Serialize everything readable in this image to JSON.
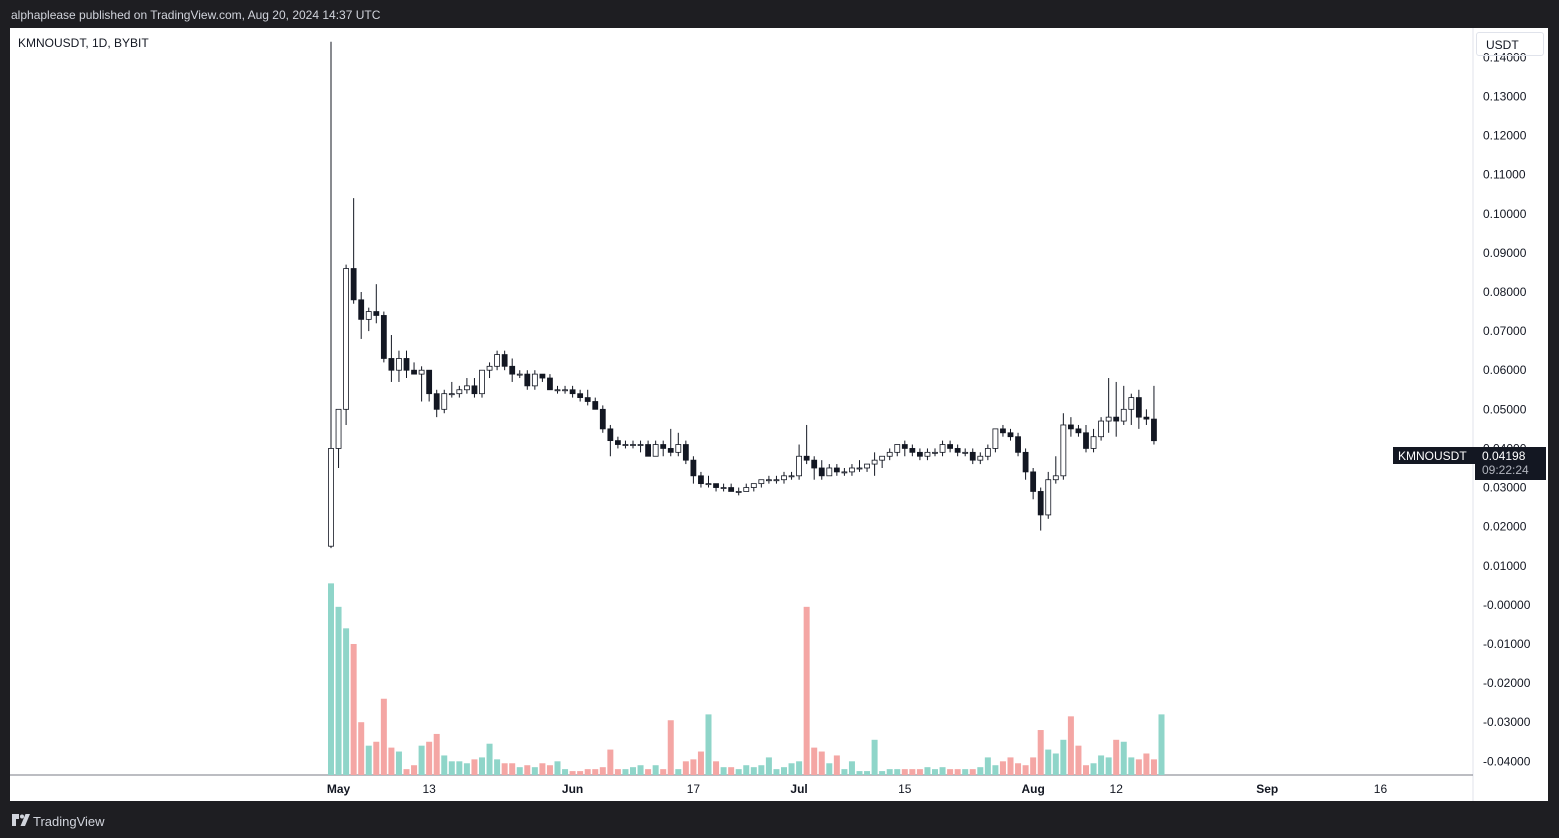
{
  "header": {
    "published_text": "alphaplease published on TradingView.com, Aug 20, 2024 14:37 UTC"
  },
  "chart_header": {
    "symbol_text": "KMNOUSDT, 1D, BYBIT",
    "currency": "USDT"
  },
  "price_badge": {
    "symbol": "KMNOUSDT",
    "price": "0.04198",
    "countdown": "09:22:24"
  },
  "footer": {
    "brand": "TradingView"
  },
  "colors": {
    "up_volume": "#8fd5c9",
    "down_volume": "#f4a6a4",
    "candle_down": "#131722",
    "candle_up_fill": "#ffffff",
    "axis_text": "#131722"
  },
  "chart_data": {
    "type": "candlestick",
    "symbol": "KMNOUSDT",
    "interval": "1D",
    "exchange": "BYBIT",
    "y_axis": {
      "ticks": [
        "0.14000",
        "0.13000",
        "0.12000",
        "0.11000",
        "0.10000",
        "0.09000",
        "0.08000",
        "0.07000",
        "0.06000",
        "0.05000",
        "0.04000",
        "0.03000",
        "0.02000",
        "0.01000",
        "-0.00000",
        "-0.01000",
        "-0.02000",
        "-0.03000",
        "-0.04000"
      ],
      "min": -0.0435,
      "max": 0.1475
    },
    "x_axis": {
      "ticks": [
        {
          "label": "May",
          "date": "2024-05-01",
          "bold": true
        },
        {
          "label": "13",
          "date": "2024-05-13",
          "bold": false
        },
        {
          "label": "Jun",
          "date": "2024-06-01",
          "bold": true
        },
        {
          "label": "17",
          "date": "2024-06-17",
          "bold": false
        },
        {
          "label": "Jul",
          "date": "2024-07-01",
          "bold": true
        },
        {
          "label": "15",
          "date": "2024-07-15",
          "bold": false
        },
        {
          "label": "Aug",
          "date": "2024-08-01",
          "bold": true
        },
        {
          "label": "12",
          "date": "2024-08-12",
          "bold": false
        },
        {
          "label": "Sep",
          "date": "2024-09-01",
          "bold": true
        },
        {
          "label": "16",
          "date": "2024-09-16",
          "bold": false
        }
      ]
    },
    "first_date": "2024-04-30",
    "last_price": 0.04198,
    "candles": [
      [
        0.015,
        0.144,
        0.0145,
        0.04
      ],
      [
        0.04,
        0.05,
        0.035,
        0.05
      ],
      [
        0.05,
        0.087,
        0.046,
        0.086
      ],
      [
        0.086,
        0.104,
        0.077,
        0.078
      ],
      [
        0.078,
        0.08,
        0.068,
        0.073
      ],
      [
        0.073,
        0.076,
        0.07,
        0.075
      ],
      [
        0.075,
        0.082,
        0.072,
        0.074
      ],
      [
        0.074,
        0.075,
        0.062,
        0.063
      ],
      [
        0.063,
        0.069,
        0.057,
        0.06
      ],
      [
        0.06,
        0.065,
        0.057,
        0.063
      ],
      [
        0.063,
        0.065,
        0.058,
        0.06
      ],
      [
        0.06,
        0.062,
        0.059,
        0.059
      ],
      [
        0.059,
        0.061,
        0.052,
        0.06
      ],
      [
        0.06,
        0.06,
        0.052,
        0.054
      ],
      [
        0.054,
        0.055,
        0.048,
        0.05
      ],
      [
        0.05,
        0.055,
        0.049,
        0.054
      ],
      [
        0.054,
        0.057,
        0.053,
        0.054
      ],
      [
        0.054,
        0.056,
        0.053,
        0.055
      ],
      [
        0.055,
        0.058,
        0.054,
        0.056
      ],
      [
        0.056,
        0.058,
        0.053,
        0.054
      ],
      [
        0.054,
        0.06,
        0.053,
        0.06
      ],
      [
        0.06,
        0.062,
        0.058,
        0.061
      ],
      [
        0.061,
        0.065,
        0.06,
        0.064
      ],
      [
        0.064,
        0.065,
        0.06,
        0.061
      ],
      [
        0.061,
        0.063,
        0.057,
        0.059
      ],
      [
        0.059,
        0.06,
        0.058,
        0.059
      ],
      [
        0.059,
        0.06,
        0.055,
        0.056
      ],
      [
        0.056,
        0.06,
        0.055,
        0.059
      ],
      [
        0.059,
        0.059,
        0.057,
        0.058
      ],
      [
        0.058,
        0.059,
        0.055,
        0.055
      ],
      [
        0.055,
        0.056,
        0.054,
        0.055
      ],
      [
        0.055,
        0.056,
        0.054,
        0.055
      ],
      [
        0.055,
        0.056,
        0.053,
        0.054
      ],
      [
        0.054,
        0.055,
        0.052,
        0.053
      ],
      [
        0.053,
        0.055,
        0.051,
        0.052
      ],
      [
        0.052,
        0.053,
        0.05,
        0.05
      ],
      [
        0.05,
        0.051,
        0.044,
        0.045
      ],
      [
        0.045,
        0.046,
        0.038,
        0.042
      ],
      [
        0.042,
        0.043,
        0.04,
        0.041
      ],
      [
        0.041,
        0.042,
        0.04,
        0.041
      ],
      [
        0.041,
        0.042,
        0.04,
        0.041
      ],
      [
        0.041,
        0.042,
        0.039,
        0.041
      ],
      [
        0.041,
        0.042,
        0.038,
        0.038
      ],
      [
        0.038,
        0.042,
        0.038,
        0.041
      ],
      [
        0.041,
        0.042,
        0.038,
        0.04
      ],
      [
        0.04,
        0.045,
        0.038,
        0.039
      ],
      [
        0.039,
        0.044,
        0.038,
        0.041
      ],
      [
        0.041,
        0.042,
        0.036,
        0.037
      ],
      [
        0.037,
        0.038,
        0.031,
        0.033
      ],
      [
        0.033,
        0.034,
        0.03,
        0.031
      ],
      [
        0.031,
        0.033,
        0.03,
        0.031
      ],
      [
        0.031,
        0.031,
        0.029,
        0.03
      ],
      [
        0.03,
        0.031,
        0.029,
        0.03
      ],
      [
        0.03,
        0.031,
        0.029,
        0.029
      ],
      [
        0.029,
        0.03,
        0.028,
        0.029
      ],
      [
        0.029,
        0.031,
        0.029,
        0.03
      ],
      [
        0.03,
        0.031,
        0.029,
        0.031
      ],
      [
        0.031,
        0.032,
        0.03,
        0.032
      ],
      [
        0.032,
        0.033,
        0.031,
        0.032
      ],
      [
        0.032,
        0.033,
        0.031,
        0.032
      ],
      [
        0.032,
        0.034,
        0.031,
        0.033
      ],
      [
        0.033,
        0.034,
        0.032,
        0.033
      ],
      [
        0.033,
        0.041,
        0.032,
        0.038
      ],
      [
        0.038,
        0.046,
        0.036,
        0.037
      ],
      [
        0.037,
        0.038,
        0.032,
        0.035
      ],
      [
        0.035,
        0.037,
        0.032,
        0.033
      ],
      [
        0.033,
        0.036,
        0.033,
        0.035
      ],
      [
        0.035,
        0.036,
        0.033,
        0.034
      ],
      [
        0.034,
        0.035,
        0.033,
        0.034
      ],
      [
        0.034,
        0.036,
        0.033,
        0.035
      ],
      [
        0.035,
        0.037,
        0.034,
        0.035
      ],
      [
        0.035,
        0.036,
        0.034,
        0.036
      ],
      [
        0.036,
        0.039,
        0.033,
        0.037
      ],
      [
        0.037,
        0.038,
        0.035,
        0.038
      ],
      [
        0.038,
        0.04,
        0.037,
        0.039
      ],
      [
        0.039,
        0.041,
        0.038,
        0.041
      ],
      [
        0.041,
        0.042,
        0.038,
        0.04
      ],
      [
        0.04,
        0.041,
        0.038,
        0.039
      ],
      [
        0.039,
        0.04,
        0.037,
        0.038
      ],
      [
        0.038,
        0.04,
        0.037,
        0.039
      ],
      [
        0.039,
        0.04,
        0.038,
        0.039
      ],
      [
        0.039,
        0.042,
        0.038,
        0.041
      ],
      [
        0.041,
        0.042,
        0.039,
        0.04
      ],
      [
        0.04,
        0.041,
        0.038,
        0.039
      ],
      [
        0.039,
        0.04,
        0.038,
        0.039
      ],
      [
        0.039,
        0.04,
        0.036,
        0.037
      ],
      [
        0.037,
        0.039,
        0.036,
        0.038
      ],
      [
        0.038,
        0.041,
        0.037,
        0.04
      ],
      [
        0.04,
        0.045,
        0.039,
        0.045
      ],
      [
        0.045,
        0.046,
        0.043,
        0.044
      ],
      [
        0.044,
        0.045,
        0.042,
        0.043
      ],
      [
        0.043,
        0.044,
        0.038,
        0.039
      ],
      [
        0.039,
        0.04,
        0.032,
        0.034
      ],
      [
        0.034,
        0.035,
        0.027,
        0.029
      ],
      [
        0.029,
        0.03,
        0.019,
        0.023
      ],
      [
        0.023,
        0.034,
        0.022,
        0.032
      ],
      [
        0.032,
        0.038,
        0.031,
        0.033
      ],
      [
        0.033,
        0.049,
        0.032,
        0.046
      ],
      [
        0.046,
        0.048,
        0.043,
        0.045
      ],
      [
        0.045,
        0.046,
        0.043,
        0.044
      ],
      [
        0.044,
        0.046,
        0.039,
        0.04
      ],
      [
        0.04,
        0.045,
        0.039,
        0.043
      ],
      [
        0.043,
        0.048,
        0.042,
        0.047
      ],
      [
        0.047,
        0.058,
        0.044,
        0.048
      ],
      [
        0.048,
        0.057,
        0.043,
        0.047
      ],
      [
        0.047,
        0.056,
        0.046,
        0.05
      ],
      [
        0.05,
        0.054,
        0.046,
        0.053
      ],
      [
        0.053,
        0.055,
        0.045,
        0.048
      ],
      [
        0.048,
        0.05,
        0.046,
        0.0475
      ],
      [
        0.0475,
        0.056,
        0.041,
        0.04198
      ]
    ],
    "volume_scale": {
      "bottom_value": -0.0435,
      "top_value": 0.0055
    },
    "volume": [
      0.0055,
      -0.0005,
      -0.006,
      -0.01,
      -0.03,
      -0.036,
      -0.035,
      -0.024,
      -0.0365,
      -0.0375,
      -0.042,
      -0.041,
      -0.036,
      -0.035,
      -0.033,
      -0.0385,
      -0.04,
      -0.04,
      -0.0405,
      -0.0395,
      -0.039,
      -0.0355,
      -0.0395,
      -0.0405,
      -0.0405,
      -0.0415,
      -0.041,
      -0.0415,
      -0.0405,
      -0.041,
      -0.04,
      -0.042,
      -0.0425,
      -0.0425,
      -0.042,
      -0.042,
      -0.0415,
      -0.037,
      -0.042,
      -0.042,
      -0.0415,
      -0.041,
      -0.042,
      -0.041,
      -0.042,
      -0.0295,
      -0.042,
      -0.04,
      -0.0395,
      -0.0375,
      -0.028,
      -0.04,
      -0.0415,
      -0.0415,
      -0.042,
      -0.041,
      -0.0415,
      -0.041,
      -0.039,
      -0.042,
      -0.0415,
      -0.0405,
      -0.04,
      -0.0005,
      -0.0365,
      -0.0375,
      -0.0405,
      -0.0385,
      -0.042,
      -0.04,
      -0.0425,
      -0.0425,
      -0.0345,
      -0.0425,
      -0.042,
      -0.042,
      -0.042,
      -0.042,
      -0.042,
      -0.0415,
      -0.042,
      -0.0415,
      -0.042,
      -0.042,
      -0.042,
      -0.042,
      -0.0415,
      -0.039,
      -0.041,
      -0.04,
      -0.039,
      -0.0405,
      -0.041,
      -0.039,
      -0.032,
      -0.037,
      -0.038,
      -0.0345,
      -0.0285,
      -0.036,
      -0.041,
      -0.0405,
      -0.0385,
      -0.039,
      -0.0345,
      -0.035,
      -0.039,
      -0.0395,
      -0.038,
      -0.0395,
      -0.028
    ]
  }
}
